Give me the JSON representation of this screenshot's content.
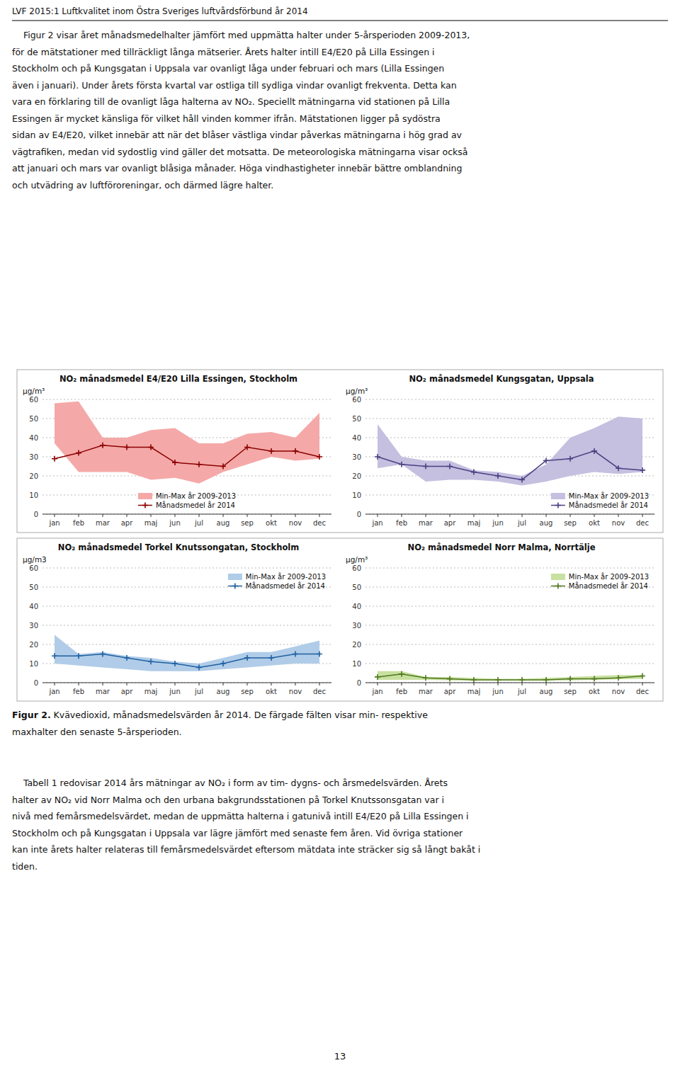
{
  "page_header": "LVF 2015:1 Luftkvalitet inom Östra Sveriges luftvårdsförbund år 2014",
  "intro_paragraph": [
    "    Figur 2 visar året månadsmedelhalter jämfört med uppmätta halter under 5-årsperioden 2009-2013,",
    "för de mätstationer med tillräckligt långa mätserier. Årets halter intill E4/E20 på Lilla Essingen i",
    "Stockholm och på Kungsgatan i Uppsala var ovanligt låga under februari och mars (Lilla Essingen",
    "även i januari). Under årets första kvartal var ostliga till sydliga vindar ovanligt frekventa. Detta kan",
    "vara en förklaring till de ovanligt låga halterna av NO₂. Speciellt mätningarna vid stationen på Lilla",
    "Essingen är mycket känsliga för vilket håll vinden kommer ifrån. Mätstationen ligger på sydöstra",
    "sidan av E4/E20, vilket innebär att när det blåser västliga vindar påverkas mätningarna i hög grad av",
    "vägtrafiken, medan vid sydostlig vind gäller det motsatta. De meteorologiska mätningarna visar också",
    "att januari och mars var ovanligt blåsiga månader. Höga vindhastigheter innebär bättre omblandning",
    "och utvädring av luftföroreningar, och därmed lägre halter."
  ],
  "chart_data": [
    {
      "type": "line",
      "title": "NO₂ månadsmedel E4/E20 Lilla Essingen, Stockholm",
      "y_label": "μg/m³",
      "categories": [
        "jan",
        "feb",
        "mar",
        "apr",
        "maj",
        "jun",
        "jul",
        "aug",
        "sep",
        "okt",
        "nov",
        "dec"
      ],
      "ylim": [
        0,
        60
      ],
      "yticks": [
        0,
        10,
        20,
        30,
        40,
        50,
        60
      ],
      "grid": true,
      "legend": "lower center",
      "series": [
        {
          "name": "Min-Max år 2009-2013",
          "type": "band",
          "color": "#f4a9a8",
          "low": [
            37,
            22,
            22,
            22,
            18,
            19,
            16,
            22,
            26,
            30,
            28,
            29
          ],
          "high": [
            58,
            59,
            40,
            40,
            44,
            45,
            37,
            37,
            42,
            43,
            40,
            53
          ]
        },
        {
          "name": "Månadsmedel år 2014",
          "type": "line",
          "color": "#8b0000",
          "marker": "plus",
          "values": [
            29,
            32,
            36,
            35,
            35,
            27,
            26,
            25,
            35,
            33,
            33,
            30
          ]
        }
      ]
    },
    {
      "type": "line",
      "title": "NO₂ månadsmedel Kungsgatan, Uppsala",
      "y_label": "μg/m³",
      "categories": [
        "jan",
        "feb",
        "mar",
        "apr",
        "maj",
        "jun",
        "jul",
        "aug",
        "sep",
        "okt",
        "nov",
        "dec"
      ],
      "ylim": [
        0,
        60
      ],
      "yticks": [
        0,
        10,
        20,
        30,
        40,
        50,
        60
      ],
      "grid": true,
      "legend": "lower right",
      "series": [
        {
          "name": "Min-Max år 2009-2013",
          "type": "band",
          "color": "#c5bfe0",
          "low": [
            24,
            26,
            17,
            18,
            18,
            17,
            15,
            17,
            20,
            22,
            21,
            22
          ],
          "high": [
            47,
            30,
            28,
            28,
            23,
            22,
            20,
            26,
            40,
            45,
            51,
            50
          ]
        },
        {
          "name": "Månadsmedel år 2014",
          "type": "line",
          "color": "#4a4080",
          "marker": "plus",
          "values": [
            30,
            26,
            25,
            25,
            22,
            20,
            18,
            28,
            29,
            33,
            24,
            23
          ]
        }
      ]
    },
    {
      "type": "line",
      "title": "NO₂ månadsmedel Torkel Knutssongatan, Stockholm",
      "y_label": "μg/m3",
      "categories": [
        "jan",
        "feb",
        "mar",
        "apr",
        "maj",
        "jun",
        "jul",
        "aug",
        "sep",
        "okt",
        "nov",
        "dec"
      ],
      "ylim": [
        0,
        60
      ],
      "yticks": [
        0,
        10,
        20,
        30,
        40,
        50,
        60
      ],
      "grid": true,
      "legend": "upper right",
      "series": [
        {
          "name": "Min-Max år 2009-2013",
          "type": "band",
          "color": "#b0cce8",
          "low": [
            10,
            9,
            8,
            7,
            6,
            6,
            6,
            7,
            8,
            9,
            10,
            10
          ],
          "high": [
            25,
            15,
            16,
            14,
            13,
            11,
            10,
            13,
            16,
            16,
            19,
            22
          ]
        },
        {
          "name": "Månadsmedel år 2014",
          "type": "line",
          "color": "#2060a0",
          "marker": "plus",
          "values": [
            14,
            14,
            15,
            13,
            11,
            10,
            8,
            10,
            13,
            13,
            15,
            15
          ]
        }
      ]
    },
    {
      "type": "line",
      "title": "NO₂ månadsmedel Norr Malma, Norrtälje",
      "y_label": "μg/m³",
      "categories": [
        "jan",
        "feb",
        "mar",
        "apr",
        "maj",
        "jun",
        "jul",
        "aug",
        "sep",
        "okt",
        "nov",
        "dec"
      ],
      "ylim": [
        0,
        60
      ],
      "yticks": [
        0,
        10,
        20,
        30,
        40,
        50,
        60
      ],
      "grid": true,
      "legend": "upper right",
      "series": [
        {
          "name": "Min-Max år 2009-2013",
          "type": "band",
          "color": "#c8e0a0",
          "low": [
            1.5,
            1.5,
            1.5,
            1.2,
            1.0,
            1.0,
            1.0,
            1.0,
            1.2,
            1.5,
            1.8,
            2.0
          ],
          "high": [
            6,
            6,
            3,
            3,
            2.5,
            2.0,
            2.0,
            2.5,
            3,
            3.5,
            4,
            4
          ]
        },
        {
          "name": "Månadsmedel år 2014",
          "type": "line",
          "color": "#507820",
          "marker": "plus",
          "values": [
            3,
            4.5,
            2.5,
            2,
            1.5,
            1.5,
            1.5,
            1.5,
            2,
            2,
            2.5,
            3.5
          ]
        }
      ]
    }
  ],
  "figure_caption_bold": "Figur 2.",
  "figure_caption_rest": [
    " Kvävedioxid, månadsmedelsvärden år 2014. De färgade fälten visar min- respektive",
    "maxhalter den senaste 5-årsperioden."
  ],
  "bottom_paragraph": [
    "    Tabell 1 redovisar 2014 års mätningar av NO₂ i form av tim- dygns- och årsmedelsvärden. Årets",
    "halter av NO₂ vid Norr Malma och den urbana bakgrundsstationen på Torkel Knutssonsgatan var i",
    "nivå med femårsmedelsvärdet, medan de uppmätta halterna i gatunivå intill E4/E20 på Lilla Essingen i",
    "Stockholm och på Kungsgatan i Uppsala var lägre jämfört med senaste fem åren. Vid övriga stationer",
    "kan inte årets halter relateras till femårsmedelsvärdet eftersom mätdata inte sträcker sig så långt bakåt i",
    "tiden."
  ],
  "page_number": "13"
}
